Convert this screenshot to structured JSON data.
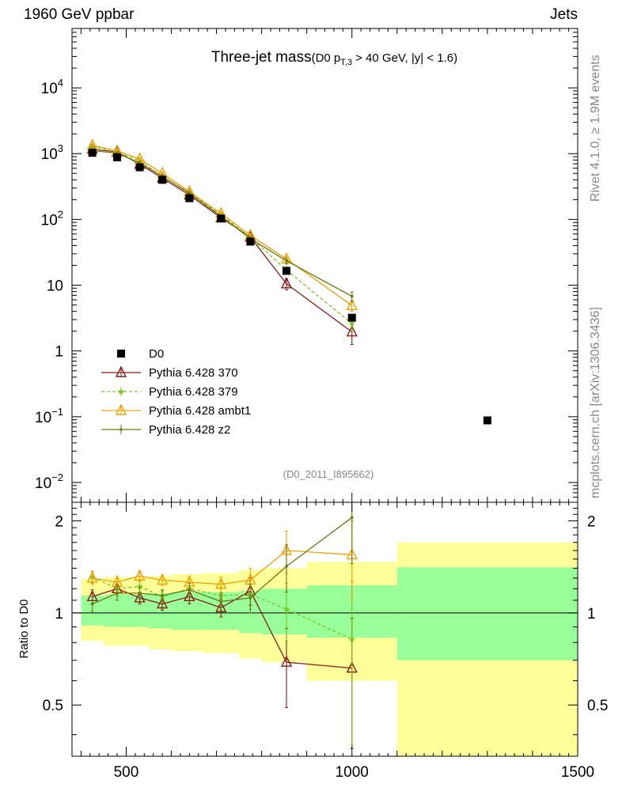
{
  "header": {
    "left": "1960 GeV ppbar",
    "right": "Jets"
  },
  "side_labels": {
    "rivet": "Rivet 4.1.0, ≥ 1.9M events",
    "mcplots": "mcplots.cern.ch [arXiv:1306.3436]"
  },
  "chart_data": [
    {
      "type": "line",
      "panel": "main",
      "title_main": "Three-jet mass",
      "title_sub_pre": "(D0 p",
      "title_sub_sub": "T,3",
      "title_sub_post": " > 40 GeV, |y| < 1.6)",
      "watermark": "(D0_2011_I895662)",
      "yscale": "log",
      "xlim": [
        380,
        1500
      ],
      "ylim": [
        0.005,
        80000
      ],
      "yticks": [
        {
          "v": 0.01,
          "base": "10",
          "exp": "−2"
        },
        {
          "v": 0.1,
          "base": "10",
          "exp": "−1"
        },
        {
          "v": 1,
          "base": "1",
          "exp": ""
        },
        {
          "v": 10,
          "base": "10",
          "exp": ""
        },
        {
          "v": 100,
          "base": "10",
          "exp": "2"
        },
        {
          "v": 1000,
          "base": "10",
          "exp": "3"
        },
        {
          "v": 10000,
          "base": "10",
          "exp": "4"
        }
      ],
      "legend_position": "lower-left",
      "series": [
        {
          "name": "D0",
          "color": "#000000",
          "marker": "square",
          "line": "none",
          "x": [
            425,
            480,
            530,
            580,
            640,
            710,
            775,
            855,
            1000,
            1300
          ],
          "y": [
            1030,
            880,
            620,
            400,
            210,
            103,
            46,
            16.5,
            3.2,
            0.088
          ]
        },
        {
          "name": "Pythia 6.428 370",
          "color": "#8b1a1a",
          "marker": "triangle-open",
          "line": "solid",
          "x": [
            425,
            480,
            530,
            580,
            640,
            710,
            775,
            855,
            1000
          ],
          "y": [
            1170,
            1060,
            690,
            425,
            235,
            106,
            54,
            10.5,
            1.95
          ],
          "err": [
            60,
            50,
            35,
            20,
            12,
            6,
            3,
            2,
            0.7
          ]
        },
        {
          "name": "Pythia 6.428 379",
          "color": "#7ac520",
          "marker": "star",
          "line": "dashed",
          "x": [
            425,
            480,
            530,
            580,
            640,
            710,
            775,
            855,
            1000
          ],
          "y": [
            1290,
            1050,
            780,
            450,
            255,
            118,
            53,
            17,
            2.6
          ],
          "err": [
            60,
            50,
            35,
            20,
            12,
            6,
            3,
            2,
            0.6
          ]
        },
        {
          "name": "Pythia 6.428 ambt1",
          "color": "#f0a000",
          "marker": "triangle-open",
          "line": "solid",
          "x": [
            425,
            480,
            530,
            580,
            640,
            710,
            775,
            855,
            1000
          ],
          "y": [
            1340,
            1100,
            830,
            500,
            265,
            123,
            57,
            25,
            4.9
          ],
          "err": [
            60,
            50,
            35,
            20,
            12,
            6,
            3,
            2.5,
            0.9
          ]
        },
        {
          "name": "Pythia 6.428 z2",
          "color": "#6b7a12",
          "marker": "dot",
          "line": "solid",
          "x": [
            425,
            480,
            530,
            580,
            640,
            710,
            775,
            855,
            1000
          ],
          "y": [
            1110,
            1020,
            720,
            455,
            250,
            112,
            51,
            23.5,
            6.8
          ],
          "err": [
            60,
            50,
            35,
            20,
            12,
            6,
            3,
            2.5,
            1.1
          ]
        }
      ]
    },
    {
      "type": "line",
      "panel": "ratio",
      "ylabel": "Ratio to D0",
      "xlim": [
        380,
        1500
      ],
      "ylim": [
        0.34,
        2.3
      ],
      "yscale": "log",
      "yticks": [
        {
          "v": 0.5,
          "label": "0.5"
        },
        {
          "v": 1,
          "label": "1"
        },
        {
          "v": 2,
          "label": "2"
        }
      ],
      "xticks": [
        {
          "v": 500,
          "label": "500"
        },
        {
          "v": 1000,
          "label": "1000"
        },
        {
          "v": 1500,
          "label": "1500"
        }
      ],
      "bands": {
        "edges": [
          400,
          450,
          500,
          550,
          600,
          670,
          750,
          800,
          900,
          1100,
          1500
        ],
        "green": [
          [
            0.91,
            1.14
          ],
          [
            0.9,
            1.15
          ],
          [
            0.9,
            1.15
          ],
          [
            0.89,
            1.16
          ],
          [
            0.88,
            1.17
          ],
          [
            0.88,
            1.17
          ],
          [
            0.86,
            1.18
          ],
          [
            0.85,
            1.2
          ],
          [
            0.83,
            1.23
          ],
          [
            0.7,
            1.41
          ]
        ],
        "yellow": [
          [
            0.81,
            1.29
          ],
          [
            0.78,
            1.31
          ],
          [
            0.78,
            1.31
          ],
          [
            0.76,
            1.32
          ],
          [
            0.75,
            1.34
          ],
          [
            0.74,
            1.35
          ],
          [
            0.71,
            1.38
          ],
          [
            0.69,
            1.4
          ],
          [
            0.6,
            1.47
          ],
          [
            0.3,
            1.7
          ]
        ],
        "green_color": "#99ff99",
        "yellow_color": "#ffff99"
      },
      "series": [
        {
          "name": "Pythia 6.428 370",
          "color": "#8b1a1a",
          "marker": "triangle-open",
          "line": "solid",
          "x": [
            425,
            480,
            530,
            580,
            640,
            710,
            775,
            855,
            1000
          ],
          "y": [
            1.13,
            1.2,
            1.12,
            1.07,
            1.13,
            1.04,
            1.18,
            0.69,
            0.66
          ],
          "err": [
            0.06,
            0.06,
            0.05,
            0.05,
            0.06,
            0.07,
            0.12,
            0.2,
            0.3
          ]
        },
        {
          "name": "Pythia 6.428 379",
          "color": "#7ac520",
          "marker": "star",
          "line": "dashed",
          "x": [
            425,
            480,
            530,
            580,
            640,
            710,
            775,
            855,
            1000
          ],
          "y": [
            1.31,
            1.2,
            1.22,
            1.13,
            1.2,
            1.14,
            1.15,
            1.03,
            0.82
          ],
          "err": [
            0.06,
            0.06,
            0.05,
            0.05,
            0.06,
            0.07,
            0.12,
            0.22,
            0.45
          ]
        },
        {
          "name": "Pythia 6.428 ambt1",
          "color": "#f0a000",
          "marker": "triangle-open",
          "line": "solid",
          "x": [
            425,
            480,
            530,
            580,
            640,
            710,
            775,
            855,
            1000
          ],
          "y": [
            1.3,
            1.26,
            1.32,
            1.28,
            1.26,
            1.24,
            1.28,
            1.6,
            1.55
          ],
          "err": [
            0.06,
            0.06,
            0.05,
            0.05,
            0.06,
            0.07,
            0.12,
            0.25,
            0.45
          ]
        },
        {
          "name": "Pythia 6.428 z2",
          "color": "#6b7a12",
          "marker": "dot",
          "line": "solid",
          "x": [
            425,
            480,
            530,
            580,
            640,
            710,
            775,
            855,
            1000
          ],
          "y": [
            1.07,
            1.16,
            1.16,
            1.14,
            1.19,
            1.09,
            1.12,
            1.42,
            2.05
          ],
          "err": [
            0.06,
            0.06,
            0.05,
            0.05,
            0.06,
            0.07,
            0.12,
            0.25,
            0.6
          ]
        }
      ]
    }
  ]
}
